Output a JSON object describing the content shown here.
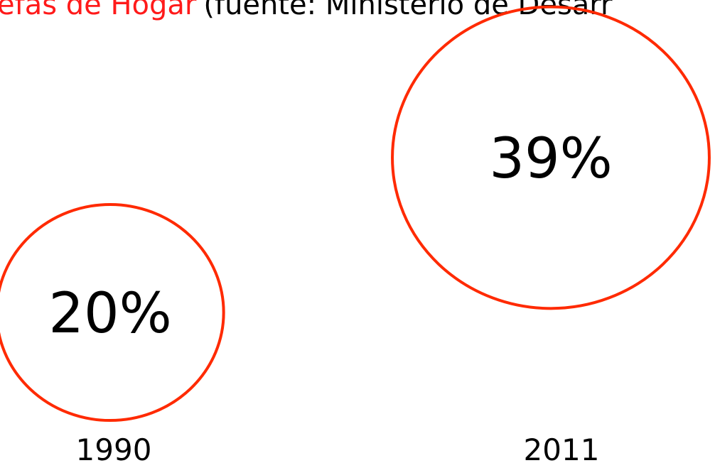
{
  "chart_data": {
    "type": "bubble",
    "title": "efas de Hogar",
    "subtitle": "(fuente: Ministerio de Desarr",
    "categories": [
      "1990",
      "2011"
    ],
    "values": [
      20,
      39
    ],
    "value_labels": [
      "20%",
      "39%"
    ],
    "color": "#ff2a00"
  }
}
